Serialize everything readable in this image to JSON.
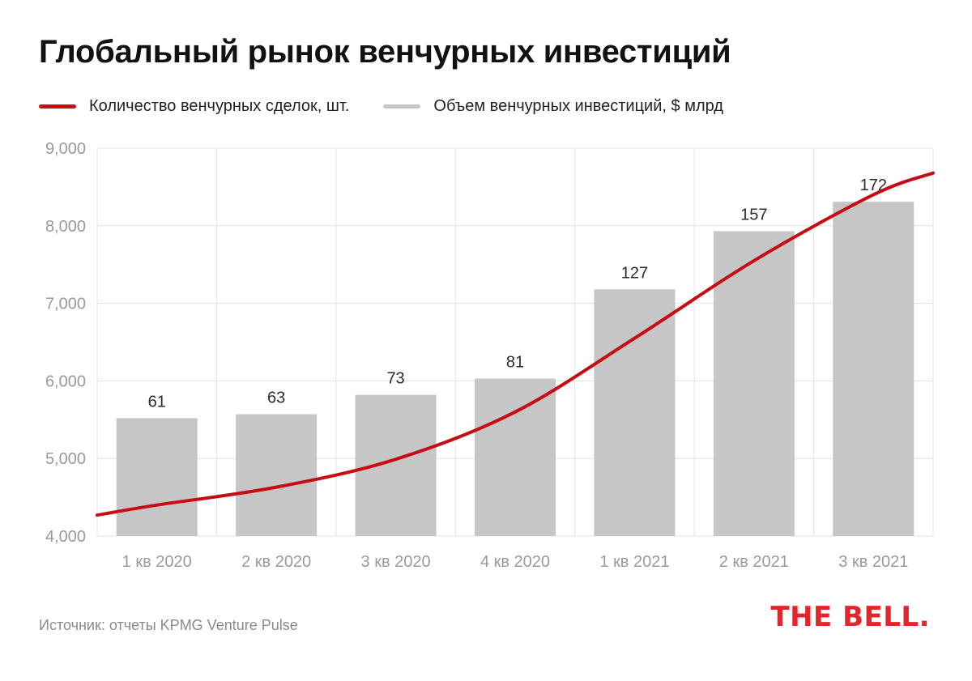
{
  "title": "Глобальный рынок венчурных инвестиций",
  "source": "Источник: отчеты KPMG Venture Pulse",
  "brand": "THE BELL.",
  "colors": {
    "line": "#c70c14",
    "bar": "#c6c6c6",
    "grid": "#e3e3e3",
    "axis_text": "#9a9a9a",
    "label_text": "#2b2b2b",
    "brand": "#e3262b"
  },
  "chart_data": {
    "type": "bar",
    "title": "Глобальный рынок венчурных инвестиций",
    "categories": [
      "1 кв 2020",
      "2 кв 2020",
      "3 кв 2020",
      "4 кв 2020",
      "1 кв 2021",
      "2 кв 2021",
      "3 кв 2021"
    ],
    "ylim": [
      4000,
      9000
    ],
    "yticks": [
      4000,
      5000,
      6000,
      7000,
      8000,
      9000
    ],
    "ytick_labels": [
      "4,000",
      "5,000",
      "6,000",
      "7,000",
      "8,000",
      "9,000"
    ],
    "grid": true,
    "legend_position": "top-left",
    "series": [
      {
        "name": "Количество венчурных сделок, шт.",
        "type": "line",
        "color": "#c70c14",
        "values": [
          4400,
          4630,
          4990,
          5600,
          6550,
          7550,
          8400
        ],
        "x_start_value": 4270,
        "x_end_value": 8680
      },
      {
        "name": "Объем венчурных инвестиций, $ млрд",
        "type": "bar",
        "color": "#c6c6c6",
        "values": [
          61,
          63,
          73,
          81,
          127,
          157,
          172
        ],
        "data_labels": [
          "61",
          "63",
          "73",
          "81",
          "127",
          "157",
          "172"
        ],
        "bar_tops_on_left_axis": [
          5520,
          5570,
          5820,
          6030,
          7180,
          7930,
          8310
        ]
      }
    ]
  }
}
